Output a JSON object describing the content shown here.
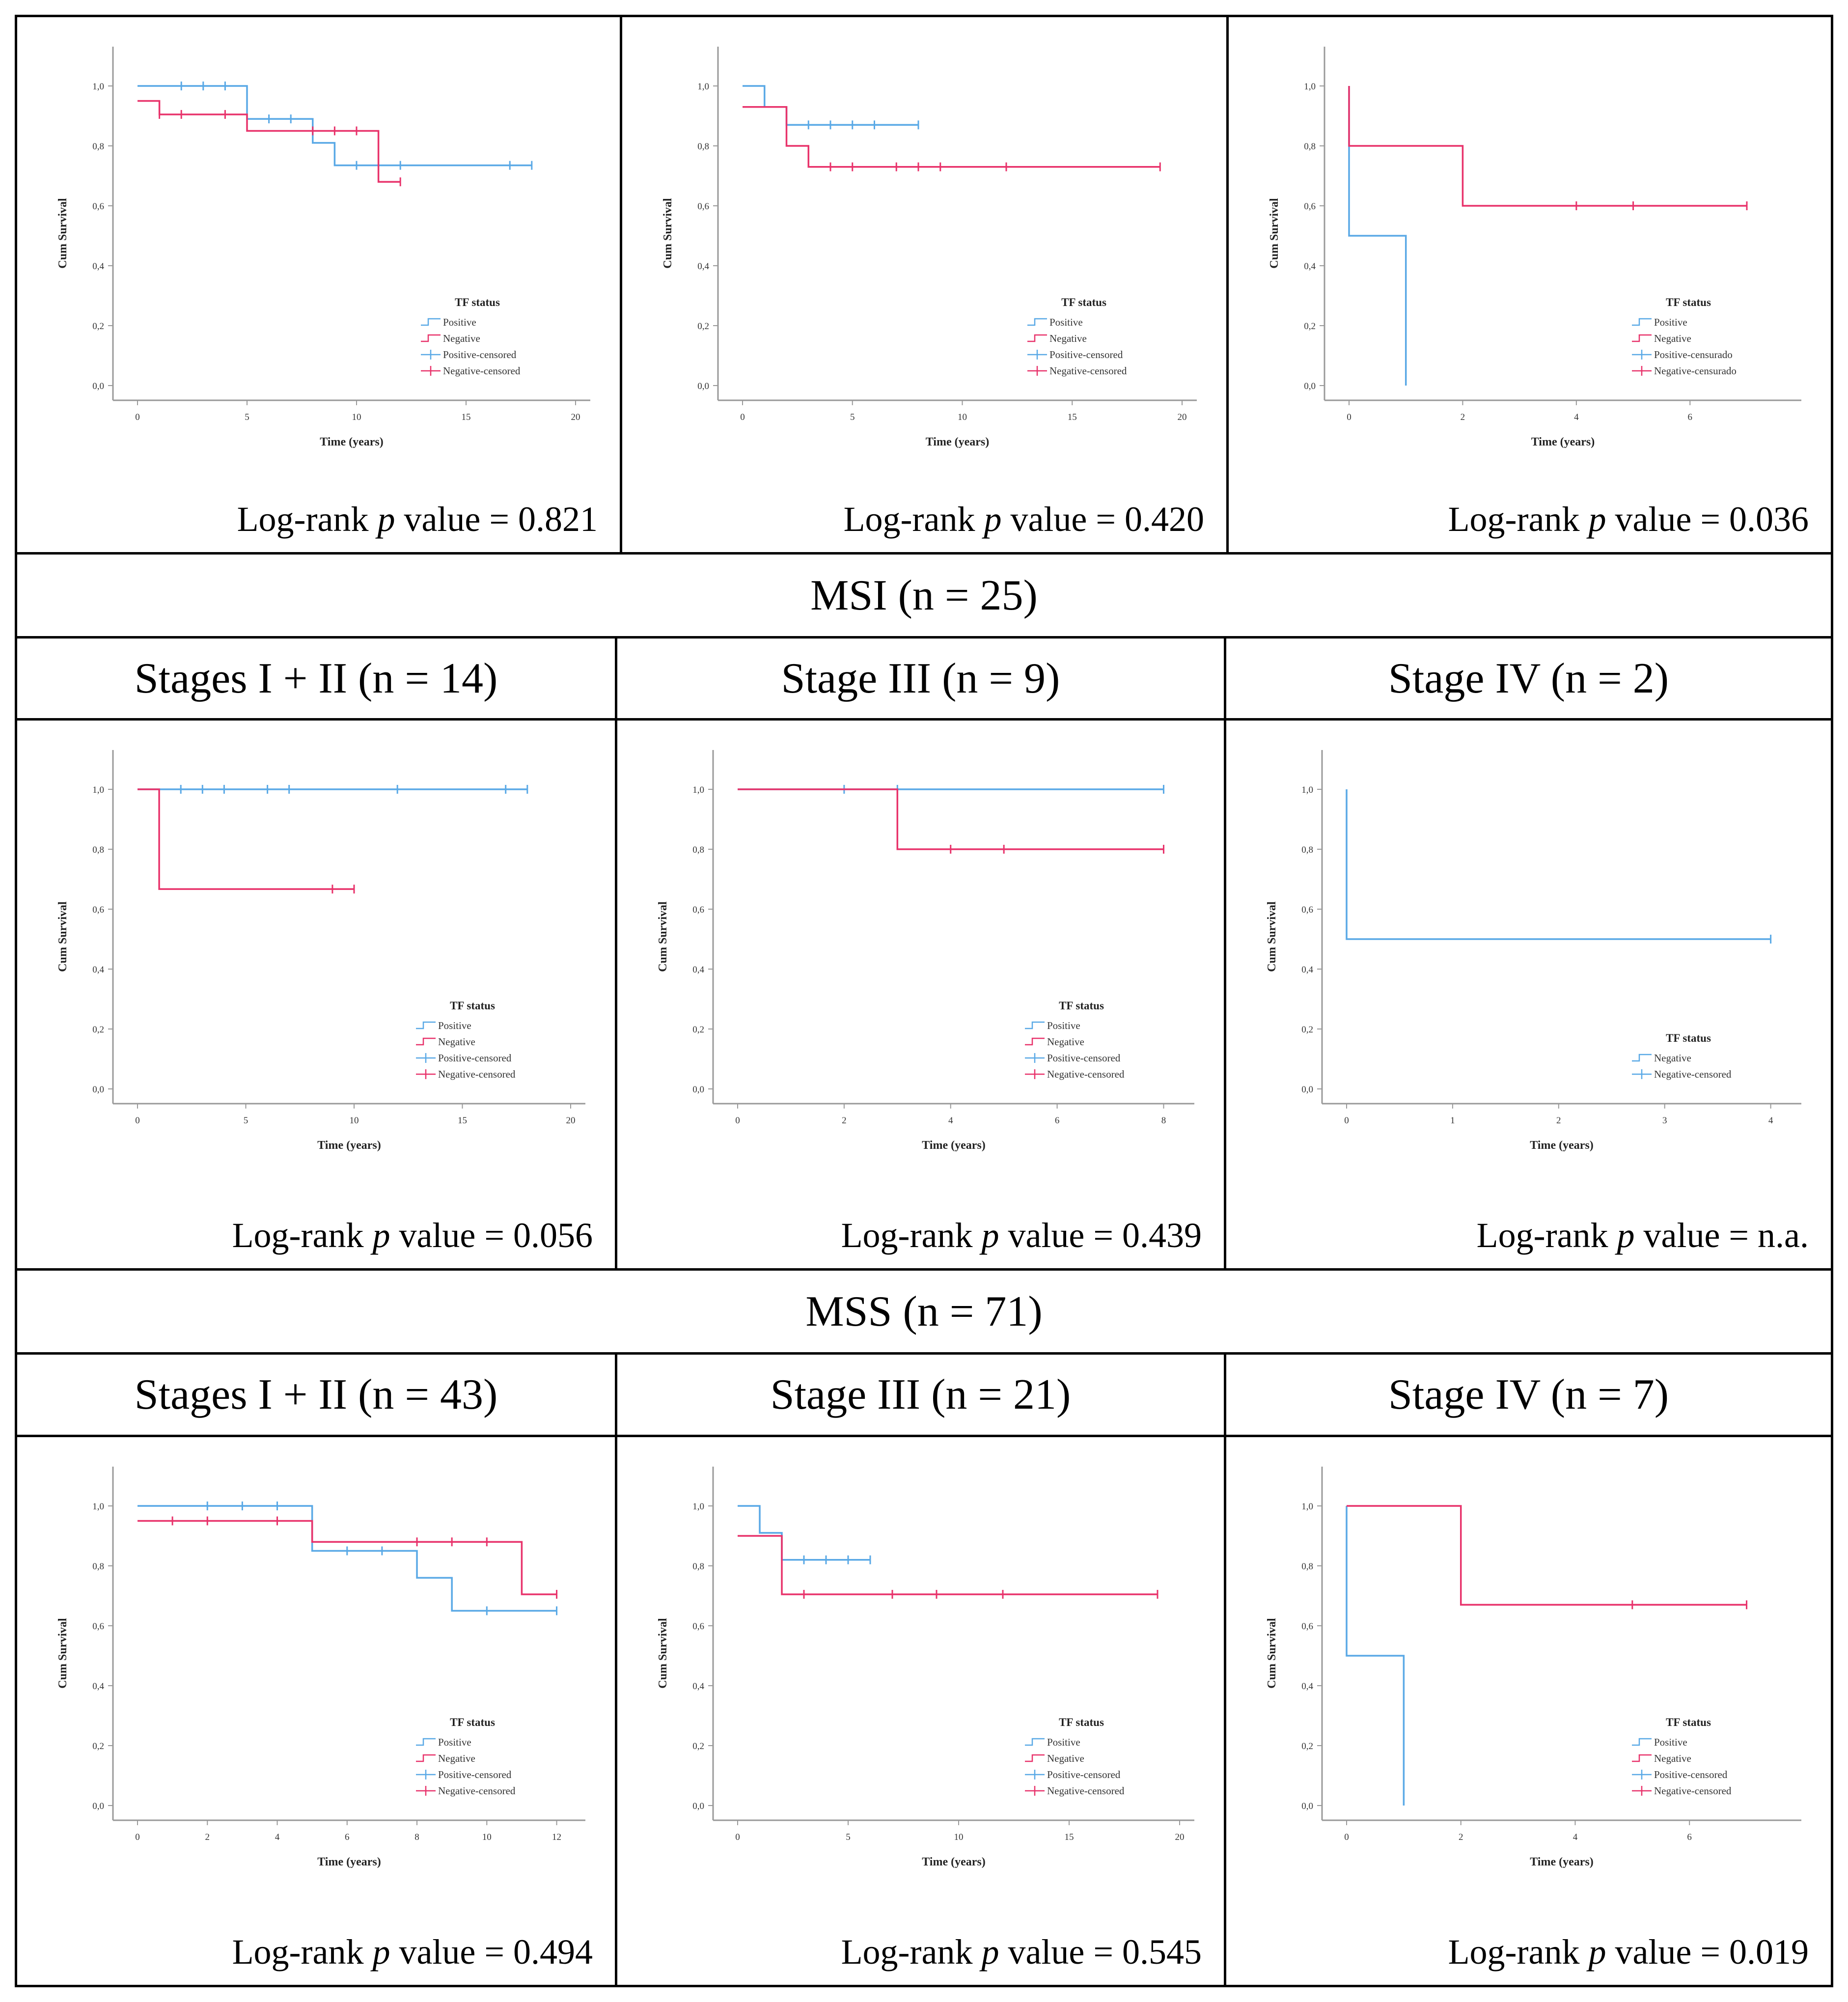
{
  "sections": {
    "msi": {
      "title": "MSI (n = 25)"
    },
    "mss": {
      "title": "MSS (n = 71)"
    }
  },
  "stage_headers": {
    "msi": [
      "Stages I + II (n = 14)",
      "Stage III (n = 9)",
      "Stage IV (n = 2)"
    ],
    "mss": [
      "Stages I + II (n = 43)",
      "Stage III (n = 21)",
      "Stage IV (n = 7)"
    ]
  },
  "pvals": [
    {
      "label": "Log-rank",
      "p": "p",
      "rest": "value = 0.821"
    },
    {
      "label": "Log-rank",
      "p": "p",
      "rest": "value = 0.420"
    },
    {
      "label": "Log-rank",
      "p": "p",
      "rest": "value = 0.036"
    },
    {
      "label": "Log-rank",
      "p": "p",
      "rest": "value = 0.056"
    },
    {
      "label": "Log-rank",
      "p": "p",
      "rest": "value = 0.439"
    },
    {
      "label": "Log-rank",
      "p": "p",
      "rest": "value = n.a."
    },
    {
      "label": "Log-rank",
      "p": "p",
      "rest": "value = 0.494"
    },
    {
      "label": "Log-rank",
      "p": "p",
      "rest": "value = 0.545"
    },
    {
      "label": "Log-rank",
      "p": "p",
      "rest": "value = 0.019"
    }
  ],
  "colors": {
    "positive": "#5aa9e6",
    "negative": "#e8336b"
  },
  "chart_data": [
    {
      "type": "line",
      "xlim": [
        0,
        20
      ],
      "xticks": [
        "0",
        "5",
        "10",
        "15",
        "20"
      ],
      "yticks": [
        "0,0",
        "0,2",
        "0,4",
        "0,6",
        "0,8",
        "1,0"
      ],
      "ylim": [
        0,
        1
      ],
      "xlabel": "Time (years)",
      "ylabel": "Cum Survival",
      "legend_title": "TF status",
      "series": [
        {
          "name": "Positive",
          "color": "positive",
          "steps": [
            [
              0,
              1.0
            ],
            [
              5,
              0.89
            ],
            [
              8,
              0.81
            ],
            [
              9,
              0.735
            ],
            [
              18,
              0.735
            ]
          ],
          "censored": [
            [
              2,
              1.0
            ],
            [
              3,
              1.0
            ],
            [
              4,
              1.0
            ],
            [
              6,
              0.89
            ],
            [
              7,
              0.89
            ],
            [
              10,
              0.735
            ],
            [
              12,
              0.735
            ],
            [
              17,
              0.735
            ],
            [
              18,
              0.735
            ]
          ]
        },
        {
          "name": "Negative",
          "color": "negative",
          "steps": [
            [
              0,
              0.95
            ],
            [
              1,
              0.905
            ],
            [
              5,
              0.85
            ],
            [
              11,
              0.68
            ],
            [
              12,
              0.68
            ]
          ],
          "censored": [
            [
              1,
              0.905
            ],
            [
              2,
              0.905
            ],
            [
              4,
              0.905
            ],
            [
              8,
              0.85
            ],
            [
              9,
              0.85
            ],
            [
              10,
              0.85
            ],
            [
              12,
              0.68
            ]
          ]
        }
      ],
      "legend": [
        "Positive",
        "Negative",
        "Positive-censored",
        "Negative-censored"
      ]
    },
    {
      "type": "line",
      "xlim": [
        0,
        20
      ],
      "xticks": [
        "0",
        "5",
        "10",
        "15",
        "20"
      ],
      "yticks": [
        "0,0",
        "0,2",
        "0,4",
        "0,6",
        "0,8",
        "1,0"
      ],
      "ylim": [
        0,
        1
      ],
      "xlabel": "Time (years)",
      "ylabel": "Cum Survival",
      "legend_title": "TF status",
      "series": [
        {
          "name": "Positive",
          "color": "positive",
          "steps": [
            [
              0,
              1.0
            ],
            [
              1,
              0.93
            ],
            [
              2,
              0.87
            ],
            [
              8,
              0.87
            ]
          ],
          "censored": [
            [
              3,
              0.87
            ],
            [
              4,
              0.87
            ],
            [
              5,
              0.87
            ],
            [
              6,
              0.87
            ],
            [
              8,
              0.87
            ]
          ]
        },
        {
          "name": "Negative",
          "color": "negative",
          "steps": [
            [
              0,
              0.93
            ],
            [
              2,
              0.8
            ],
            [
              3,
              0.73
            ],
            [
              19,
              0.73
            ]
          ],
          "censored": [
            [
              4,
              0.73
            ],
            [
              5,
              0.73
            ],
            [
              7,
              0.73
            ],
            [
              8,
              0.73
            ],
            [
              9,
              0.73
            ],
            [
              12,
              0.73
            ],
            [
              19,
              0.73
            ]
          ]
        }
      ],
      "legend": [
        "Positive",
        "Negative",
        "Positive-censored",
        "Negative-censored"
      ]
    },
    {
      "type": "line",
      "xlim": [
        0,
        7.7
      ],
      "xticks": [
        "0",
        "2",
        "4",
        "6"
      ],
      "xtickvals": [
        0,
        2,
        4,
        6
      ],
      "yticks": [
        "0,0",
        "0,2",
        "0,4",
        "0,6",
        "0,8",
        "1,0"
      ],
      "ylim": [
        0,
        1
      ],
      "xlabel": "Time (years)",
      "ylabel": "Cum Survival",
      "legend_title": "TF status",
      "series": [
        {
          "name": "Positive",
          "color": "positive",
          "steps": [
            [
              0,
              1.0
            ],
            [
              0,
              0.5
            ],
            [
              1,
              0.0
            ]
          ],
          "censored": []
        },
        {
          "name": "Negative",
          "color": "negative",
          "steps": [
            [
              0,
              1.0
            ],
            [
              0,
              0.8
            ],
            [
              2,
              0.6
            ],
            [
              7,
              0.6
            ]
          ],
          "censored": [
            [
              4,
              0.6
            ],
            [
              5,
              0.6
            ],
            [
              7,
              0.6
            ]
          ]
        }
      ],
      "legend": [
        "Positive",
        "Negative",
        "Positive-censurado",
        "Negative-censurado"
      ]
    },
    {
      "type": "line",
      "xlim": [
        0,
        20
      ],
      "xticks": [
        "0",
        "5",
        "10",
        "15",
        "20"
      ],
      "yticks": [
        "0,0",
        "0,2",
        "0,4",
        "0,6",
        "0,8",
        "1,0"
      ],
      "ylim": [
        0,
        1
      ],
      "xlabel": "Time (years)",
      "ylabel": "Cum Survival",
      "legend_title": "TF status",
      "series": [
        {
          "name": "Positive",
          "color": "positive",
          "steps": [
            [
              0,
              1.0
            ],
            [
              18,
              1.0
            ]
          ],
          "censored": [
            [
              2,
              1.0
            ],
            [
              3,
              1.0
            ],
            [
              4,
              1.0
            ],
            [
              6,
              1.0
            ],
            [
              7,
              1.0
            ],
            [
              12,
              1.0
            ],
            [
              17,
              1.0
            ],
            [
              18,
              1.0
            ]
          ]
        },
        {
          "name": "Negative",
          "color": "negative",
          "steps": [
            [
              0,
              1.0
            ],
            [
              1,
              0.667
            ],
            [
              10,
              0.667
            ]
          ],
          "censored": [
            [
              9,
              0.667
            ],
            [
              10,
              0.667
            ]
          ]
        }
      ],
      "legend": [
        "Positive",
        "Negative",
        "Positive-censored",
        "Negative-censored"
      ]
    },
    {
      "type": "line",
      "xlim": [
        0,
        8.3
      ],
      "xticks": [
        "0",
        "2",
        "4",
        "6",
        "8"
      ],
      "xtickvals": [
        0,
        2,
        4,
        6,
        8
      ],
      "yticks": [
        "0,0",
        "0,2",
        "0,4",
        "0,6",
        "0,8",
        "1,0"
      ],
      "ylim": [
        0,
        1
      ],
      "xlabel": "Time (years)",
      "ylabel": "Cum Survival",
      "legend_title": "TF status",
      "series": [
        {
          "name": "Positive",
          "color": "positive",
          "steps": [
            [
              0,
              1.0
            ],
            [
              8,
              1.0
            ]
          ],
          "censored": [
            [
              2,
              1.0
            ],
            [
              3,
              1.0
            ],
            [
              8,
              1.0
            ]
          ]
        },
        {
          "name": "Negative",
          "color": "negative",
          "steps": [
            [
              0,
              1.0
            ],
            [
              3,
              0.8
            ],
            [
              8,
              0.8
            ]
          ],
          "censored": [
            [
              4,
              0.8
            ],
            [
              5,
              0.8
            ],
            [
              8,
              0.8
            ]
          ]
        }
      ],
      "legend": [
        "Positive",
        "Negative",
        "Positive-censored",
        "Negative-censored"
      ]
    },
    {
      "type": "line",
      "xlim": [
        0,
        4.15
      ],
      "xticks": [
        "0",
        "1",
        "2",
        "3",
        "4"
      ],
      "xtickvals": [
        0,
        1,
        2,
        3,
        4
      ],
      "yticks": [
        "0,0",
        "0,2",
        "0,4",
        "0,6",
        "0,8",
        "1,0"
      ],
      "ylim": [
        0,
        1
      ],
      "xlabel": "Time (years)",
      "ylabel": "Cum Survival",
      "legend_title": "TF status",
      "series": [
        {
          "name": "Negative",
          "color": "positive",
          "steps": [
            [
              0,
              1.0
            ],
            [
              0,
              0.5
            ],
            [
              4,
              0.5
            ]
          ],
          "censored": [
            [
              4,
              0.5
            ]
          ]
        }
      ],
      "legend": [
        "Negative",
        "Negative-censored"
      ]
    },
    {
      "type": "line",
      "xlim": [
        0,
        12.4
      ],
      "xticks": [
        "0",
        "2",
        "4",
        "6",
        "8",
        "10",
        "12"
      ],
      "xtickvals": [
        0,
        2,
        4,
        6,
        8,
        10,
        12
      ],
      "yticks": [
        "0,0",
        "0,2",
        "0,4",
        "0,6",
        "0,8",
        "1,0"
      ],
      "ylim": [
        0,
        1
      ],
      "xlabel": "Time (years)",
      "ylabel": "Cum Survival",
      "legend_title": "TF status",
      "series": [
        {
          "name": "Positive",
          "color": "positive",
          "steps": [
            [
              0,
              1.0
            ],
            [
              5,
              0.85
            ],
            [
              8,
              0.76
            ],
            [
              9,
              0.65
            ],
            [
              12,
              0.65
            ]
          ],
          "censored": [
            [
              2,
              1.0
            ],
            [
              3,
              1.0
            ],
            [
              4,
              1.0
            ],
            [
              6,
              0.85
            ],
            [
              7,
              0.85
            ],
            [
              10,
              0.65
            ],
            [
              12,
              0.65
            ]
          ]
        },
        {
          "name": "Negative",
          "color": "negative",
          "steps": [
            [
              0,
              0.95
            ],
            [
              5,
              0.88
            ],
            [
              11,
              0.705
            ],
            [
              12,
              0.705
            ]
          ],
          "censored": [
            [
              1,
              0.95
            ],
            [
              2,
              0.95
            ],
            [
              4,
              0.95
            ],
            [
              8,
              0.88
            ],
            [
              9,
              0.88
            ],
            [
              10,
              0.88
            ],
            [
              12,
              0.705
            ]
          ]
        }
      ],
      "legend": [
        "Positive",
        "Negative",
        "Positive-censored",
        "Negative-censored"
      ]
    },
    {
      "type": "line",
      "xlim": [
        0,
        20
      ],
      "xticks": [
        "0",
        "5",
        "10",
        "15",
        "20"
      ],
      "yticks": [
        "0,0",
        "0,2",
        "0,4",
        "0,6",
        "0,8",
        "1,0"
      ],
      "ylim": [
        0,
        1
      ],
      "xlabel": "Time (years)",
      "ylabel": "Cum Survival",
      "legend_title": "TF status",
      "series": [
        {
          "name": "Positive",
          "color": "positive",
          "steps": [
            [
              0,
              1.0
            ],
            [
              1,
              0.91
            ],
            [
              2,
              0.82
            ],
            [
              6,
              0.82
            ]
          ],
          "censored": [
            [
              3,
              0.82
            ],
            [
              4,
              0.82
            ],
            [
              5,
              0.82
            ],
            [
              6,
              0.82
            ]
          ]
        },
        {
          "name": "Negative",
          "color": "negative",
          "steps": [
            [
              0,
              0.9
            ],
            [
              2,
              0.705
            ],
            [
              19,
              0.705
            ]
          ],
          "censored": [
            [
              3,
              0.705
            ],
            [
              7,
              0.705
            ],
            [
              9,
              0.705
            ],
            [
              12,
              0.705
            ],
            [
              19,
              0.705
            ]
          ]
        }
      ],
      "legend": [
        "Positive",
        "Negative",
        "Positive-censored",
        "Negative-censored"
      ]
    },
    {
      "type": "line",
      "xlim": [
        0,
        7.7
      ],
      "xticks": [
        "0",
        "2",
        "4",
        "6"
      ],
      "xtickvals": [
        0,
        2,
        4,
        6
      ],
      "yticks": [
        "0,0",
        "0,2",
        "0,4",
        "0,6",
        "0,8",
        "1,0"
      ],
      "ylim": [
        0,
        1
      ],
      "xlabel": "Time (years)",
      "ylabel": "Cum Survival",
      "legend_title": "TF status",
      "series": [
        {
          "name": "Positive",
          "color": "positive",
          "steps": [
            [
              0,
              1.0
            ],
            [
              0,
              0.5
            ],
            [
              1,
              0.0
            ]
          ],
          "censored": []
        },
        {
          "name": "Negative",
          "color": "negative",
          "steps": [
            [
              0,
              1.0
            ],
            [
              2,
              0.67
            ],
            [
              7,
              0.67
            ]
          ],
          "censored": [
            [
              5,
              0.67
            ],
            [
              7,
              0.67
            ]
          ]
        }
      ],
      "legend": [
        "Positive",
        "Negative",
        "Positive-censored",
        "Negative-censored"
      ]
    }
  ]
}
